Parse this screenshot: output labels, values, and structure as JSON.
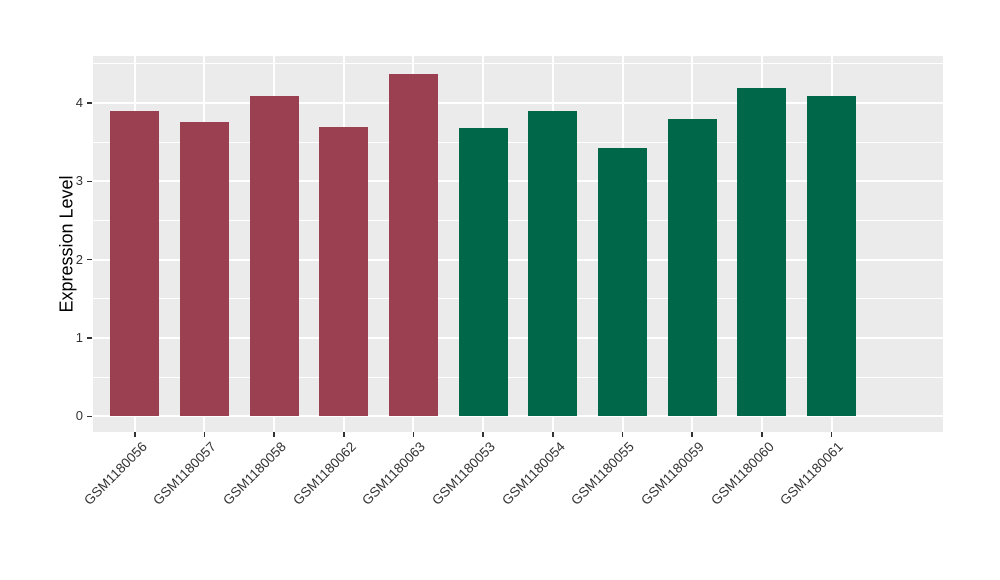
{
  "figure": {
    "background": "#FFFFFF",
    "panel_background": "#EBEBEB",
    "grid_color": "#FFFFFF",
    "tick_color": "#333333",
    "tick_label_color": "#333333",
    "axis_title_color": "#000000"
  },
  "chart_data": {
    "type": "bar",
    "title": "",
    "xlabel": "",
    "ylabel": "Expression Level",
    "categories": [
      "GSM1180056",
      "GSM1180057",
      "GSM1180058",
      "GSM1180062",
      "GSM1180063",
      "GSM1180053",
      "GSM1180054",
      "GSM1180055",
      "GSM1180059",
      "GSM1180060",
      "GSM1180061"
    ],
    "values": [
      3.9,
      3.76,
      4.09,
      3.7,
      4.37,
      3.68,
      3.9,
      3.42,
      3.79,
      4.19,
      4.09
    ],
    "bar_colors": [
      "#9B4050",
      "#9B4050",
      "#9B4050",
      "#9B4050",
      "#9B4050",
      "#006848",
      "#006848",
      "#006848",
      "#006848",
      "#006848",
      "#006848"
    ],
    "group_colors": {
      "red_group": "#9B4050",
      "green_group": "#006848"
    },
    "yticks": [
      "0",
      "1",
      "2",
      "3",
      "4"
    ],
    "ytick_values": [
      0,
      1,
      2,
      3,
      4
    ],
    "minor_ytick_values": [
      0.5,
      1.5,
      2.5,
      3.5,
      4.5
    ],
    "ylim": [
      -0.2,
      4.6
    ],
    "grid": true,
    "legend": "none",
    "x_label_rotation_deg": 45
  }
}
